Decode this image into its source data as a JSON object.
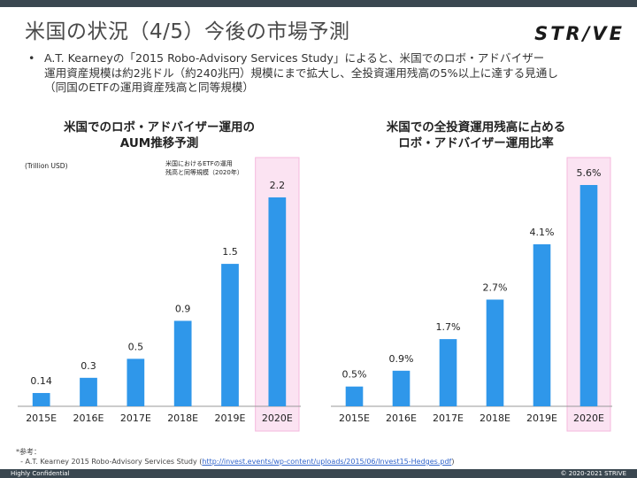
{
  "slide": {
    "title": "米国の状況（4/5）今後の市場予測",
    "logo": "STR/VE",
    "bullet_marker": "•",
    "bullet_lines": [
      "A.T. Kearneyの「2015 Robo-Advisory Services Study」によると、米国でのロボ・アドバイザー",
      "運用資産規模は約2兆ドル（約240兆円）規模にまで拡大し、全投資運用残高の5%以上に達する見通し",
      "（同国のETFの運用資産残高と同等規模）"
    ],
    "footnote_label": "*参考：",
    "footnote_text": "- A.T. Kearney 2015 Robo-Advisory Services Study (",
    "footnote_link": "http://invest.events/wp-content/uploads/2015/06/Invest15-Hedges.pdf",
    "footnote_close": ")",
    "confidential": "Highly Confidential",
    "copyright": "© 2020-2021 STRIVE"
  },
  "colors": {
    "bar": "#2f97ea",
    "highlight": "#fbe3f2",
    "highlight_border": "#f5b9de",
    "axis": "#999999",
    "header_bar": "#3a4750"
  },
  "chart_data": [
    {
      "type": "bar",
      "title_lines": [
        "米国でのロボ・アドバイザー運用の",
        "AUM推移予測"
      ],
      "unit_label": "(Trillion USD)",
      "annotation_lines": [
        "米国におけるETFの運用",
        "残高と同等規模（2020年）"
      ],
      "categories": [
        "2015E",
        "2016E",
        "2017E",
        "2018E",
        "2019E",
        "2020E"
      ],
      "values": [
        0.14,
        0.3,
        0.5,
        0.9,
        1.5,
        2.2
      ],
      "value_labels": [
        "0.14",
        "0.3",
        "0.5",
        "0.9",
        "1.5",
        "2.2"
      ],
      "highlight_category": "2020E",
      "ylim": [
        0,
        2.2
      ]
    },
    {
      "type": "bar",
      "title_lines": [
        "米国での全投資運用残高に占める",
        "ロボ・アドバイザー運用比率"
      ],
      "categories": [
        "2015E",
        "2016E",
        "2017E",
        "2018E",
        "2019E",
        "2020E"
      ],
      "values": [
        0.5,
        0.9,
        1.7,
        2.7,
        4.1,
        5.6
      ],
      "value_labels": [
        "0.5%",
        "0.9%",
        "1.7%",
        "2.7%",
        "4.1%",
        "5.6%"
      ],
      "highlight_category": "2020E",
      "ylim": [
        0,
        5.6
      ]
    }
  ]
}
